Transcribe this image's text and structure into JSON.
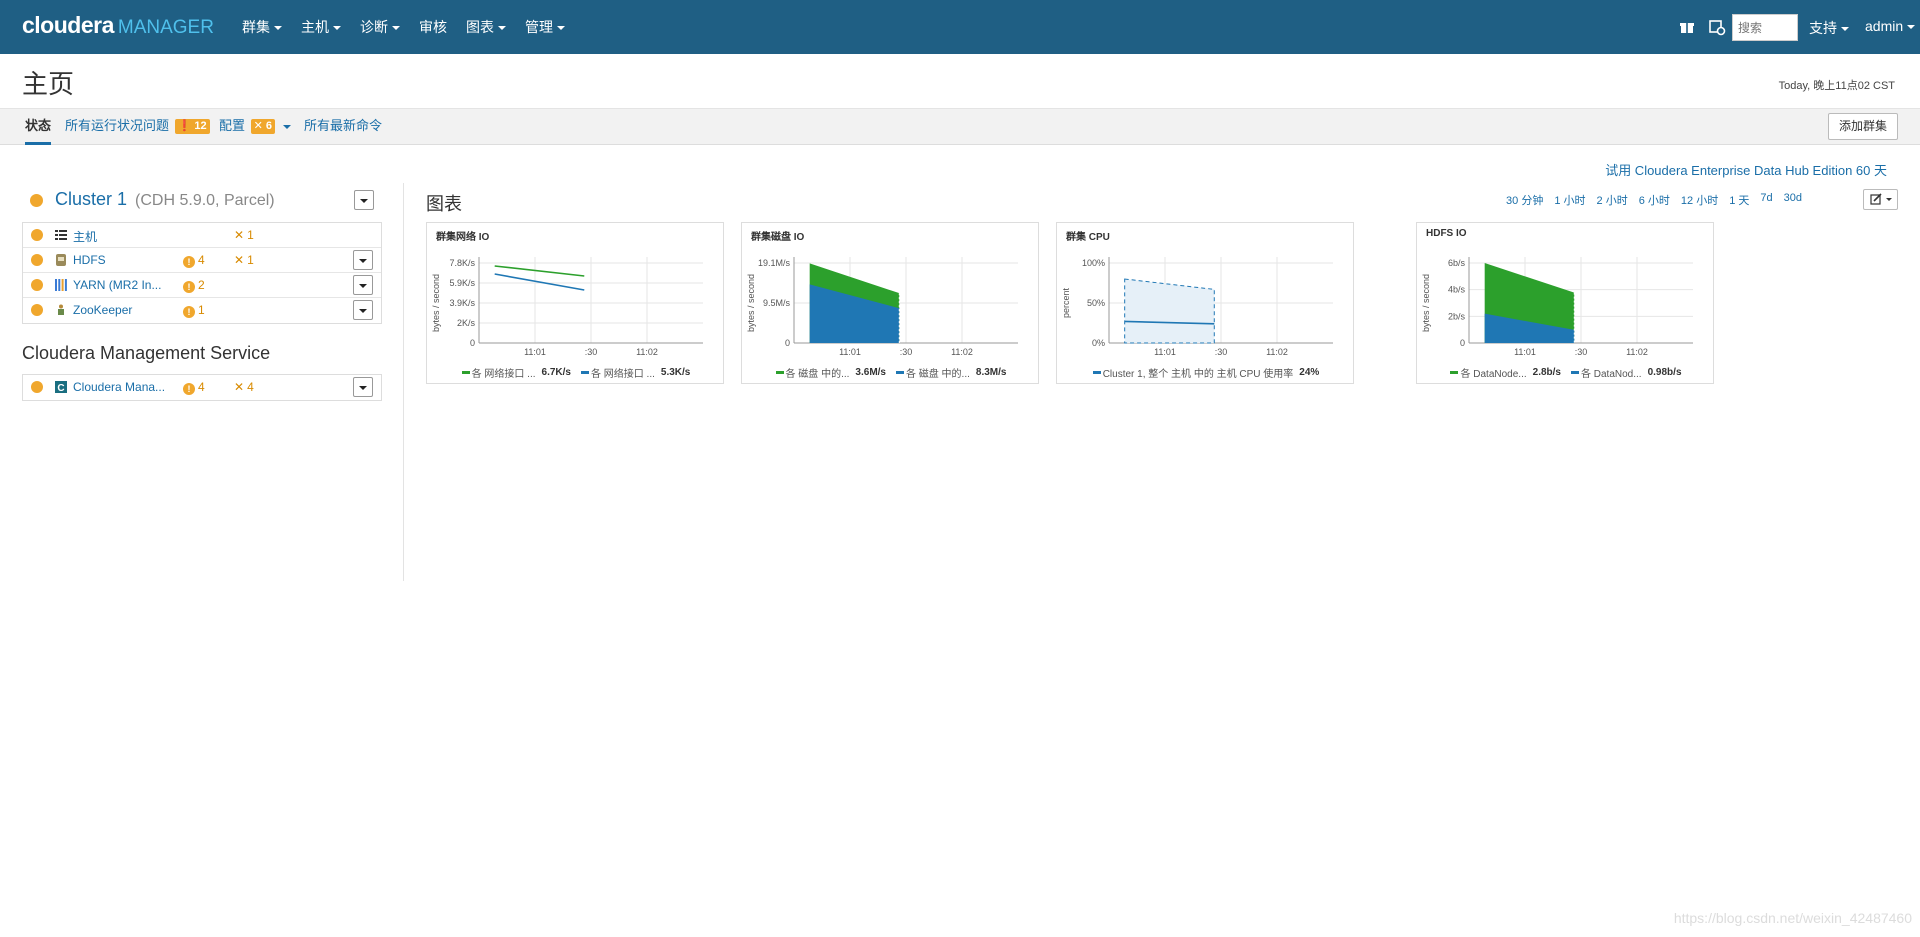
{
  "nav": {
    "brand_main": "cloudera",
    "brand_sub": "MANAGER",
    "items": [
      "群集",
      "主机",
      "诊断",
      "审核",
      "图表",
      "管理"
    ],
    "search_placeholder": "搜索",
    "support": "支持",
    "user": "admin"
  },
  "page": {
    "title": "主页",
    "timestamp": "Today, 晚上11点02 CST"
  },
  "tabs": {
    "status": "状态",
    "health_issues": "所有运行状况问题",
    "health_issues_count": "12",
    "config": "配置",
    "config_count": "6",
    "recent_commands": "所有最新命令",
    "add_cluster": "添加群集"
  },
  "cluster": {
    "name": "Cluster 1",
    "version": "(CDH 5.9.0, Parcel)",
    "services": [
      {
        "name": "主机",
        "icon": "hosts-list-icon",
        "warnings": "",
        "config": "1"
      },
      {
        "name": "HDFS",
        "icon": "hdfs-icon",
        "warnings": "4",
        "config": "1"
      },
      {
        "name": "YARN (MR2 In...",
        "icon": "yarn-icon",
        "warnings": "2",
        "config": ""
      },
      {
        "name": "ZooKeeper",
        "icon": "zookeeper-icon",
        "warnings": "1",
        "config": ""
      }
    ]
  },
  "cms": {
    "title": "Cloudera Management Service",
    "service": {
      "name": "Cloudera Mana...",
      "icon": "cloudera-c-icon",
      "warnings": "4",
      "config": "4"
    }
  },
  "charts_panel": {
    "trial": "试用 Cloudera Enterprise Data Hub Edition 60 天",
    "title": "图表",
    "ranges": [
      "30 分钟",
      "1 小时",
      "2 小时",
      "6 小时",
      "12 小时",
      "1 天",
      "7d",
      "30d"
    ]
  },
  "colors": {
    "green": "#2ca02c",
    "blue": "#1f77b4",
    "accent": "#1a6ea8",
    "warning": "#f0a72d",
    "topbar": "#1f5f84"
  },
  "chart_data": [
    {
      "type": "line",
      "title": "群集网络 IO",
      "ylabel": "bytes / second",
      "x_ticks": [
        "11:01",
        ":30",
        "11:02"
      ],
      "y_ticks": [
        "0",
        "2K/s",
        "3.9K/s",
        "5.9K/s",
        "7.8K/s"
      ],
      "ylim": [
        0,
        8000
      ],
      "series": [
        {
          "name": "各 网络接口 ...",
          "color": "green",
          "values": [
            7700,
            6700
          ],
          "legend_value": "6.7K/s"
        },
        {
          "name": "各 网络接口 ...",
          "color": "blue",
          "values": [
            6900,
            5300
          ],
          "legend_value": "5.3K/s"
        }
      ]
    },
    {
      "type": "area",
      "title": "群集磁盘 IO",
      "ylabel": "bytes / second",
      "x_ticks": [
        "11:01",
        ":30",
        "11:02"
      ],
      "y_ticks": [
        "0",
        "9.5M/s",
        "19.1M/s"
      ],
      "ylim": [
        0,
        19100000
      ],
      "series": [
        {
          "name": "各 磁盘 中的...",
          "color": "green",
          "values": [
            5000000,
            3600000
          ],
          "legend_value": "3.6M/s"
        },
        {
          "name": "各 磁盘 中的...",
          "color": "blue",
          "values": [
            14000000,
            8300000
          ],
          "legend_value": "8.3M/s"
        }
      ]
    },
    {
      "type": "line",
      "title": "群集 CPU",
      "ylabel": "percent",
      "x_ticks": [
        "11:01",
        ":30",
        "11:02"
      ],
      "y_ticks": [
        "0%",
        "50%",
        "100%"
      ],
      "ylim": [
        0,
        100
      ],
      "band": [
        80,
        67
      ],
      "series": [
        {
          "name": "Cluster 1, 整个 主机 中的 主机 CPU 使用率",
          "color": "blue",
          "values": [
            27,
            24
          ],
          "legend_value": "24%"
        }
      ]
    },
    {
      "type": "area",
      "title": "HDFS IO",
      "ylabel": "bytes / second",
      "x_ticks": [
        "11:01",
        ":30",
        "11:02"
      ],
      "y_ticks": [
        "0",
        "2b/s",
        "4b/s",
        "6b/s"
      ],
      "ylim": [
        0,
        6
      ],
      "series": [
        {
          "name": "各 DataNode...",
          "color": "green",
          "values": [
            3.8,
            2.8
          ],
          "legend_value": "2.8b/s"
        },
        {
          "name": "各 DataNod...",
          "color": "blue",
          "values": [
            2.2,
            0.98
          ],
          "legend_value": "0.98b/s"
        }
      ]
    }
  ],
  "watermark": "https://blog.csdn.net/weixin_42487460"
}
